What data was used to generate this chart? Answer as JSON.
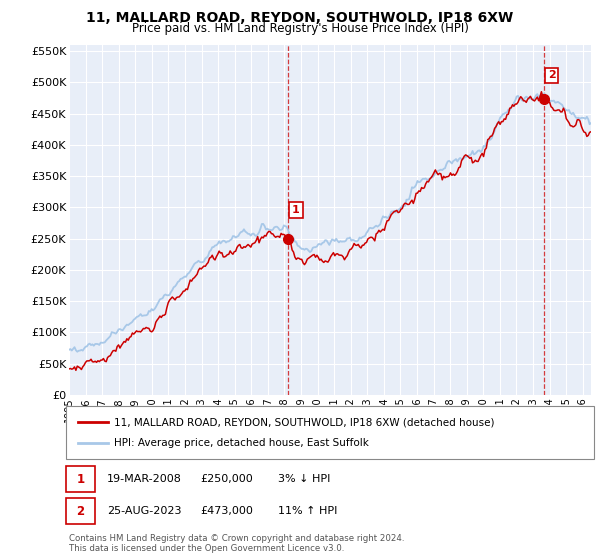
{
  "title": "11, MALLARD ROAD, REYDON, SOUTHWOLD, IP18 6XW",
  "subtitle": "Price paid vs. HM Land Registry's House Price Index (HPI)",
  "legend_line1": "11, MALLARD ROAD, REYDON, SOUTHWOLD, IP18 6XW (detached house)",
  "legend_line2": "HPI: Average price, detached house, East Suffolk",
  "annotation1_label": "1",
  "annotation1_date": "19-MAR-2008",
  "annotation1_price": "£250,000",
  "annotation1_hpi": "3% ↓ HPI",
  "annotation2_label": "2",
  "annotation2_date": "25-AUG-2023",
  "annotation2_price": "£473,000",
  "annotation2_hpi": "11% ↑ HPI",
  "footnote": "Contains HM Land Registry data © Crown copyright and database right 2024.\nThis data is licensed under the Open Government Licence v3.0.",
  "hpi_color": "#a8c8e8",
  "sale_color": "#cc0000",
  "annotation_box_color": "#cc0000",
  "background_color": "#ffffff",
  "plot_bg_color": "#e8eef8",
  "grid_color": "#ffffff",
  "ylim": [
    0,
    560000
  ],
  "yticks": [
    0,
    50000,
    100000,
    150000,
    200000,
    250000,
    300000,
    350000,
    400000,
    450000,
    500000,
    550000
  ],
  "sale1_x": 2008.21,
  "sale1_y": 250000,
  "sale2_x": 2023.65,
  "sale2_y": 473000,
  "vline1_x": 2008.21,
  "vline2_x": 2023.65,
  "xmin": 1995,
  "xmax": 2026.5,
  "xticks": [
    1995,
    1996,
    1997,
    1998,
    1999,
    2000,
    2001,
    2002,
    2003,
    2004,
    2005,
    2006,
    2007,
    2008,
    2009,
    2010,
    2011,
    2012,
    2013,
    2014,
    2015,
    2016,
    2017,
    2018,
    2019,
    2020,
    2021,
    2022,
    2023,
    2024,
    2025,
    2026
  ]
}
